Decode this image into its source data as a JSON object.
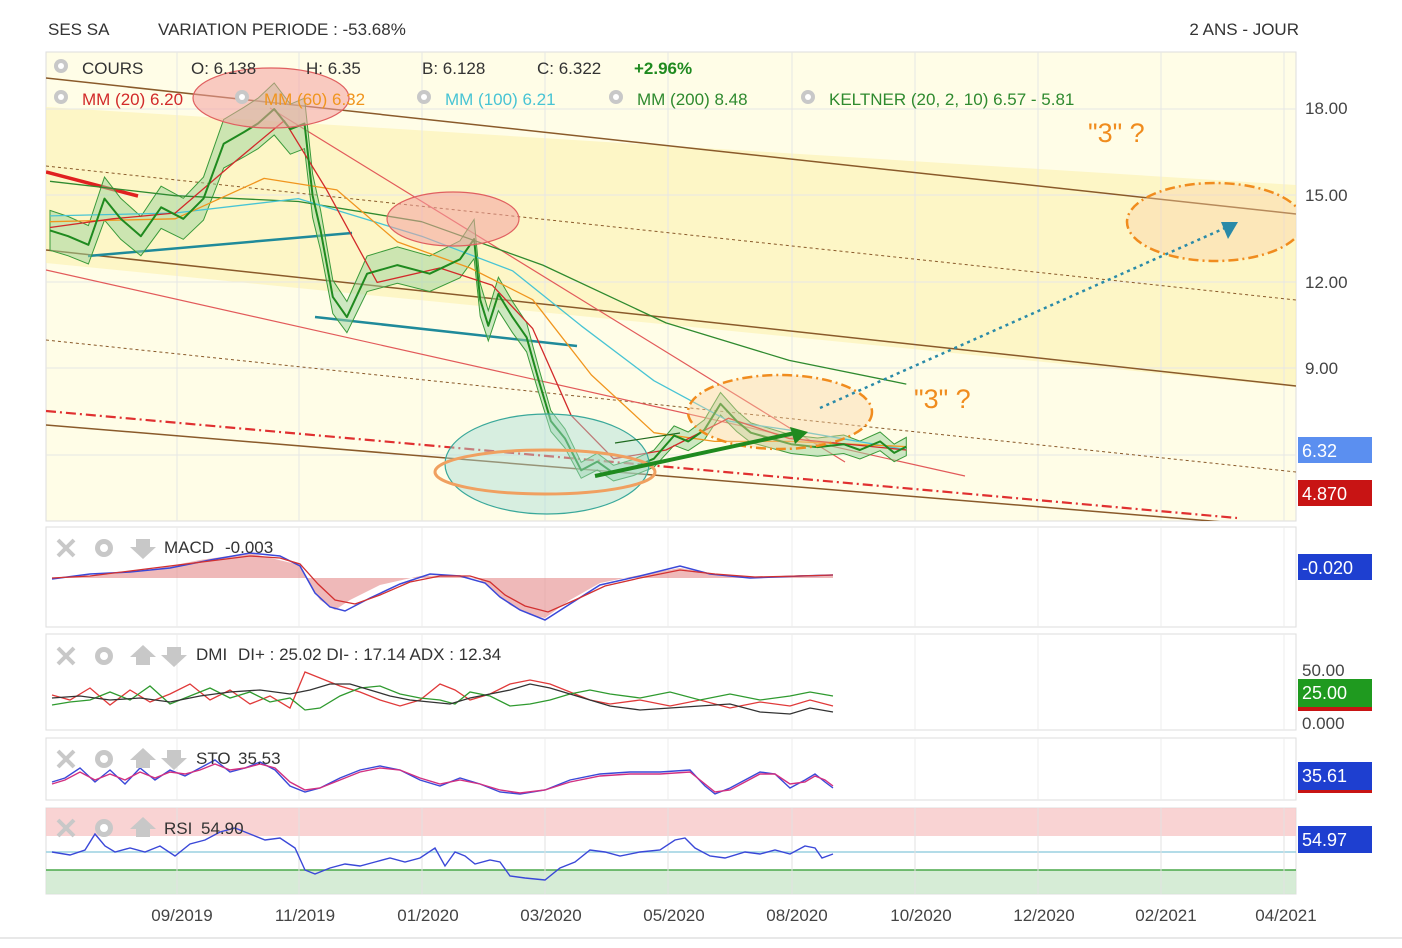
{
  "header": {
    "ticker": "SES SA",
    "variation": "VARIATION PERIODE : -53.68%",
    "period": "2 ANS - JOUR"
  },
  "legend": {
    "cours": "COURS",
    "open": "O: 6.138",
    "high": "H: 6.35",
    "low": "B: 6.128",
    "close": "C: 6.322",
    "change": "+2.96%",
    "mm20": "MM (20)  6.20",
    "mm60": "MM (60)  6.32",
    "mm100": "MM (100)  6.21",
    "mm200": "MM (200)  8.48",
    "keltner": "KELTNER (20, 2, 10)  6.57 - 5.81"
  },
  "annotations": {
    "three_q1": "\"3\" ?",
    "three_q2": "\"3\" ?"
  },
  "price_axis": {
    "ticks": [
      "18.00",
      "15.00",
      "12.00",
      "9.00"
    ],
    "last_price": "6.32",
    "support": "4.870"
  },
  "x_axis": {
    "ticks": [
      "09/2019",
      "11/2019",
      "01/2020",
      "03/2020",
      "05/2020",
      "08/2020",
      "10/2020",
      "12/2020",
      "02/2021",
      "04/2021"
    ]
  },
  "panels": {
    "macd": {
      "label": "MACD",
      "value": "-0.003",
      "badge": "-0.020"
    },
    "dmi": {
      "label": "DMI",
      "value": "DI+ : 25.02 DI- : 17.14 ADX : 12.34",
      "ticks": [
        "50.00",
        "0.000"
      ],
      "badge": "25.00"
    },
    "sto": {
      "label": "STO",
      "value": "35.53",
      "badge": "35.61"
    },
    "rsi": {
      "label": "RSI",
      "value": "54.90",
      "badge": "54.97"
    }
  },
  "colors": {
    "candle": "#1f8a1f",
    "mm20": "#d22a2a",
    "mm60": "#f0951e",
    "mm100": "#48c4d4",
    "mm200": "#2f8a2f",
    "channel": "#8a5a2a",
    "badge_blue": "#1e3fd0",
    "badge_red": "#c81414",
    "badge_green": "#1f9a1f"
  },
  "chart_data": {
    "type": "line",
    "price_scale": [
      4.0,
      19.5
    ],
    "series": [
      {
        "name": "COURS",
        "points": [
          [
            "2019-07-01",
            13.8
          ],
          [
            "2019-07-10",
            13.6
          ],
          [
            "2019-07-20",
            13.3
          ],
          [
            "2019-07-28",
            14.9
          ],
          [
            "2019-08-05",
            14.2
          ],
          [
            "2019-08-15",
            13.6
          ],
          [
            "2019-08-25",
            14.6
          ],
          [
            "2019-09-05",
            14.2
          ],
          [
            "2019-09-15",
            14.9
          ],
          [
            "2019-09-25",
            16.8
          ],
          [
            "2019-10-05",
            17.2
          ],
          [
            "2019-10-12",
            17.5
          ],
          [
            "2019-10-20",
            18.0
          ],
          [
            "2019-10-28",
            17.3
          ],
          [
            "2019-11-04",
            17.5
          ],
          [
            "2019-11-08",
            15.0
          ],
          [
            "2019-11-12",
            13.8
          ],
          [
            "2019-11-18",
            11.5
          ],
          [
            "2019-11-25",
            10.8
          ],
          [
            "2019-12-05",
            12.3
          ],
          [
            "2019-12-20",
            12.6
          ],
          [
            "2020-01-05",
            12.3
          ],
          [
            "2020-01-20",
            12.8
          ],
          [
            "2020-01-27",
            13.5
          ],
          [
            "2020-01-30",
            11.4
          ],
          [
            "2020-02-03",
            10.5
          ],
          [
            "2020-02-08",
            11.6
          ],
          [
            "2020-02-15",
            10.8
          ],
          [
            "2020-02-22",
            10.1
          ],
          [
            "2020-02-28",
            8.6
          ],
          [
            "2020-03-05",
            7.2
          ],
          [
            "2020-03-12",
            6.6
          ],
          [
            "2020-03-20",
            5.5
          ],
          [
            "2020-03-28",
            5.8
          ],
          [
            "2020-04-05",
            5.4
          ],
          [
            "2020-04-15",
            5.6
          ],
          [
            "2020-04-25",
            5.9
          ],
          [
            "2020-05-05",
            6.7
          ],
          [
            "2020-05-12",
            6.5
          ],
          [
            "2020-05-20",
            6.9
          ],
          [
            "2020-05-28",
            7.8
          ],
          [
            "2020-06-05",
            7.2
          ],
          [
            "2020-06-12",
            6.8
          ],
          [
            "2020-06-22",
            6.6
          ],
          [
            "2020-07-02",
            6.4
          ],
          [
            "2020-07-15",
            6.3
          ],
          [
            "2020-07-28",
            6.4
          ],
          [
            "2020-08-05",
            6.2
          ],
          [
            "2020-08-15",
            6.5
          ],
          [
            "2020-08-22",
            6.1
          ],
          [
            "2020-08-28",
            6.32
          ]
        ]
      },
      {
        "name": "MM (20)",
        "points": [
          [
            "2019-07-01",
            13.9
          ],
          [
            "2019-08-01",
            14.2
          ],
          [
            "2019-09-01",
            14.4
          ],
          [
            "2019-10-01",
            16.2
          ],
          [
            "2019-10-25",
            17.6
          ],
          [
            "2019-11-15",
            15.2
          ],
          [
            "2019-12-10",
            12.0
          ],
          [
            "2020-01-10",
            12.5
          ],
          [
            "2020-02-05",
            11.9
          ],
          [
            "2020-02-25",
            10.4
          ],
          [
            "2020-03-15",
            7.4
          ],
          [
            "2020-04-05",
            5.9
          ],
          [
            "2020-05-01",
            6.2
          ],
          [
            "2020-06-01",
            7.3
          ],
          [
            "2020-07-01",
            6.6
          ],
          [
            "2020-08-28",
            6.2
          ]
        ]
      },
      {
        "name": "MM (60)",
        "points": [
          [
            "2019-07-01",
            14.1
          ],
          [
            "2019-09-01",
            14.2
          ],
          [
            "2019-10-15",
            15.6
          ],
          [
            "2019-11-20",
            15.2
          ],
          [
            "2019-12-20",
            13.4
          ],
          [
            "2020-01-25",
            12.5
          ],
          [
            "2020-02-25",
            11.4
          ],
          [
            "2020-03-25",
            8.8
          ],
          [
            "2020-04-25",
            6.8
          ],
          [
            "2020-05-25",
            6.5
          ],
          [
            "2020-07-01",
            6.5
          ],
          [
            "2020-08-28",
            6.32
          ]
        ]
      },
      {
        "name": "MM (100)",
        "points": [
          [
            "2019-07-01",
            14.3
          ],
          [
            "2019-09-01",
            14.4
          ],
          [
            "2019-11-01",
            14.9
          ],
          [
            "2020-01-01",
            13.6
          ],
          [
            "2020-02-15",
            12.4
          ],
          [
            "2020-03-20",
            10.5
          ],
          [
            "2020-04-25",
            8.6
          ],
          [
            "2020-06-01",
            7.2
          ],
          [
            "2020-07-10",
            6.8
          ],
          [
            "2020-08-28",
            6.21
          ]
        ]
      },
      {
        "name": "MM (200)",
        "points": [
          [
            "2019-07-01",
            15.5
          ],
          [
            "2019-09-01",
            15.0
          ],
          [
            "2019-11-01",
            14.8
          ],
          [
            "2020-01-01",
            14.1
          ],
          [
            "2020-03-01",
            12.6
          ],
          [
            "2020-05-01",
            10.6
          ],
          [
            "2020-07-01",
            9.3
          ],
          [
            "2020-08-28",
            8.48
          ]
        ]
      }
    ],
    "support_level": 4.87,
    "last_price": 6.32
  }
}
